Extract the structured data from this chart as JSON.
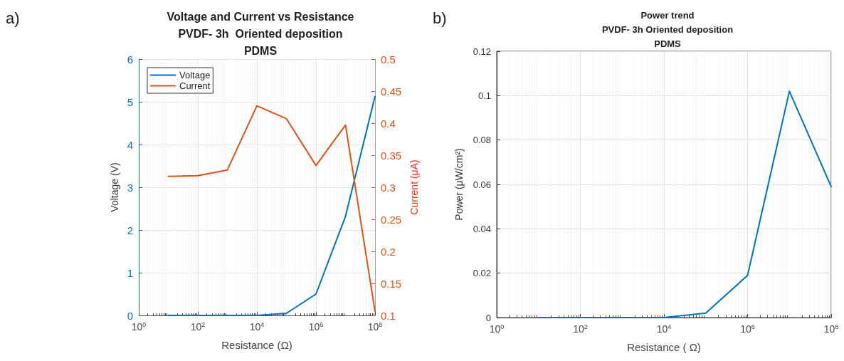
{
  "chart_data": [
    {
      "type": "line",
      "title": "Voltage and Current vs Resistance\nPVDF- 3h  Oriented deposition\nPDMS",
      "xlabel": "Resistance (Ω)",
      "ylabel": "Voltage (V)",
      "y2label": "Current (μA)",
      "annotations": [
        "a)"
      ],
      "x": [
        10,
        100,
        1000,
        10000,
        100000,
        1000000,
        10000000,
        100000000
      ],
      "series": [
        {
          "name": "Voltage",
          "color": "#0072bd",
          "values": [
            0,
            0,
            0,
            0,
            0.05,
            0.5,
            2.32,
            5.13
          ]
        },
        {
          "name": "Current",
          "color": "#d95319",
          "axis": "y2",
          "values": [
            0.317,
            0.318,
            0.327,
            0.427,
            0.407,
            0.334,
            0.397,
            0.106
          ]
        }
      ],
      "log": "x",
      "xlim": [
        1,
        100000000
      ],
      "xticks": [
        {
          "value": 1,
          "label": "10$^{0}$"
        },
        {
          "value": 100,
          "label": "10$^{2}$"
        },
        {
          "value": 10000,
          "label": "10$^{4}$"
        },
        {
          "value": 1000000,
          "label": "10$^{6}$"
        },
        {
          "value": 100000000,
          "label": "10$^{8}$"
        }
      ],
      "ylim": [
        0,
        6
      ],
      "yticks": [
        0,
        1,
        2,
        3,
        4,
        5,
        6
      ],
      "y2lim": [
        0.1,
        0.5
      ],
      "y2ticks": [
        0.1,
        0.15,
        0.2,
        0.25,
        0.3,
        0.35,
        0.4,
        0.45,
        0.5
      ],
      "grid": true,
      "legend": "top left",
      "line_style": "solid",
      "marker": "none"
    },
    {
      "type": "line",
      "title": "Power trend\nPVDF- 3h Oriented deposition\nPDMS",
      "xlabel": "Resistance ( Ω)",
      "ylabel": "Power (μW/cm²)",
      "annotations": [
        "b)"
      ],
      "x": [
        10,
        100,
        1000,
        10000,
        100000,
        1000000,
        10000000,
        100000000
      ],
      "series": [
        {
          "color": "#0072bd",
          "values": [
            0,
            0,
            0,
            0,
            0.002,
            0.019,
            0.102,
            0.059
          ]
        }
      ],
      "log": "x",
      "xlim": [
        1,
        100000000
      ],
      "xticks": [
        {
          "value": 1,
          "label": "10$^{0}$"
        },
        {
          "value": 100,
          "label": "10$^{2}$"
        },
        {
          "value": 10000,
          "label": "10$^{4}$"
        },
        {
          "value": 1000000,
          "label": "10$^{6}$"
        },
        {
          "value": 100000000,
          "label": "10$^{8}$"
        }
      ],
      "ylim": [
        0,
        0.12
      ],
      "yticks": [
        0,
        0.02,
        0.04,
        0.06,
        0.08,
        0.1,
        0.12
      ],
      "grid": true,
      "legend": false,
      "line_style": "solid",
      "marker": "none"
    }
  ]
}
